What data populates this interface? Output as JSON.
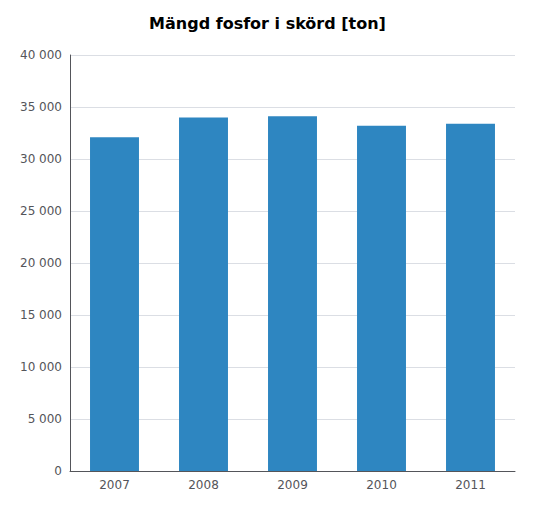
{
  "chart_data": {
    "type": "bar",
    "title": "Mängd fosfor i skörd [ton]",
    "categories": [
      "2007",
      "2008",
      "2009",
      "2010",
      "2011"
    ],
    "values": [
      32100,
      34000,
      34100,
      33200,
      33400
    ],
    "color": "#2E86C1",
    "ylim": [
      0,
      40000
    ],
    "yticks": [
      0,
      {
        "value": 5000,
        "label": "5 000"
      },
      {
        "value": 10000,
        "label": "10 000"
      },
      {
        "value": 15000,
        "label": "15 000"
      },
      {
        "value": 20000,
        "label": "20 000"
      },
      {
        "value": 25000,
        "label": "25 000"
      },
      {
        "value": 30000,
        "label": "30 000"
      },
      {
        "value": 35000,
        "label": "35 000"
      },
      {
        "value": 40000,
        "label": "40 000"
      }
    ],
    "grid": true
  }
}
